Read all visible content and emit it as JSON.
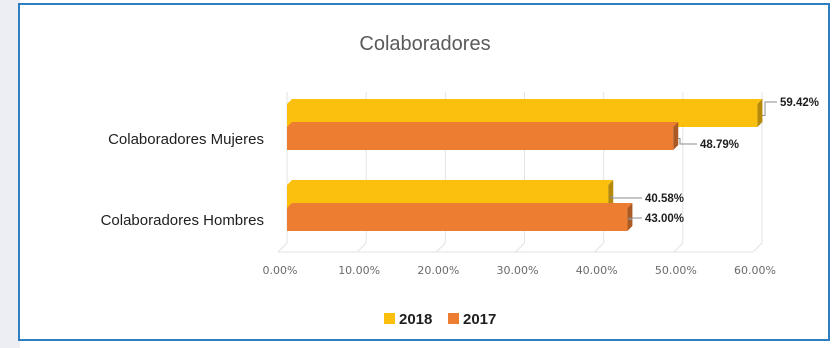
{
  "chart_data": {
    "type": "bar",
    "orientation": "horizontal",
    "title": "Colaboradores",
    "categories": [
      "Colaboradores Mujeres",
      "Colaboradores Hombres"
    ],
    "series": [
      {
        "name": "2018",
        "color": "#fbbf0e",
        "values": [
          59.42,
          40.58
        ],
        "labels": [
          "59.42%",
          "40.58%"
        ]
      },
      {
        "name": "2017",
        "color": "#ed7d31",
        "values": [
          48.79,
          43.0
        ],
        "labels": [
          "48.79%",
          "43.00%"
        ]
      }
    ],
    "x_ticks": [
      "0.00%",
      "10.00%",
      "20.00%",
      "30.00%",
      "40.00%",
      "50.00%",
      "60.00%"
    ],
    "xlim": [
      0,
      60
    ],
    "grid": true,
    "legend_position": "bottom"
  }
}
